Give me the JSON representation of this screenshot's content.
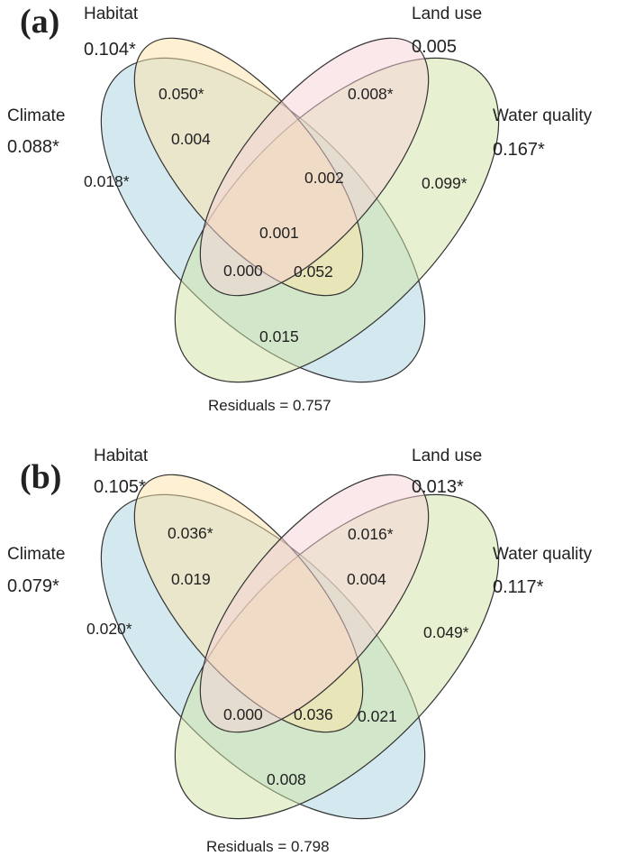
{
  "colors": {
    "climate": "#a9d3e0",
    "habitat": "#fde3a8",
    "land_use": "#f8d2d6",
    "water_quality": "#cfe3a6",
    "outline": "#333333"
  },
  "panels": [
    {
      "label": "(a)",
      "sets": {
        "habitat": {
          "name": "Habitat",
          "value": "0.104*"
        },
        "land_use": {
          "name": "Land use",
          "value": "0.005"
        },
        "climate": {
          "name": "Climate",
          "value": "0.088*"
        },
        "water_quality": {
          "name": "Water quality",
          "value": "0.167*"
        }
      },
      "regions": {
        "habitat_only": "0.050*",
        "land_use_only": "0.008*",
        "climate_only": "0.018*",
        "water_quality_only": "0.099*",
        "climate_habitat": "0.004",
        "habitat_water": "0.002",
        "center": "0.001",
        "lower_left": "0.000",
        "lower_right": "0.052",
        "climate_water": "0.015",
        "land_water": ""
      },
      "residuals": "Residuals = 0.757"
    },
    {
      "label": "(b)",
      "sets": {
        "habitat": {
          "name": "Habitat",
          "value": "0.105*"
        },
        "land_use": {
          "name": "Land use",
          "value": "0.013*"
        },
        "climate": {
          "name": "Climate",
          "value": "0.079*"
        },
        "water_quality": {
          "name": "Water quality",
          "value": "0.117*"
        }
      },
      "regions": {
        "habitat_only": "0.036*",
        "land_use_only": "0.016*",
        "climate_only": "0.020*",
        "water_quality_only": "0.049*",
        "climate_habitat": "0.019",
        "habitat_water": "",
        "center": "",
        "lower_left": "0.000",
        "lower_right": "0.036",
        "climate_water": "0.008",
        "land_water": "0.004",
        "land_water_lower": "0.021"
      },
      "residuals": "Residuals = 0.798"
    }
  ]
}
